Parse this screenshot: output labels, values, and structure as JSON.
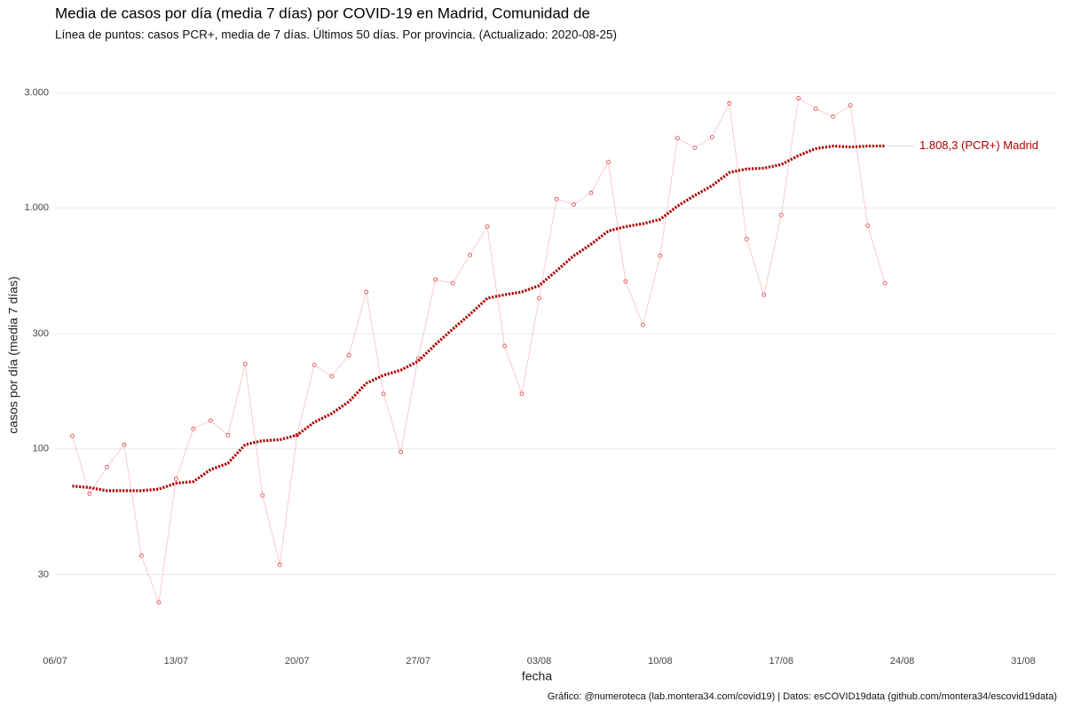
{
  "chart_data": {
    "type": "line",
    "title": "Media de casos por día (media 7 días) por COVID-19 en Madrid, Comunidad de",
    "subtitle": "Línea de puntos: casos PCR+, media de 7 días. Últimos 50 días. Por provincia. (Actualizado: 2020-08-25)",
    "x_label": "fecha",
    "y_label": "casos por día (media 7 días)",
    "caption": "Gráfico: @numeroteca (lab.montera34.com/covid19) | Datos: esCOVID19data (github.com/montera34/escovid19data)",
    "annotation": "1.808,3 (PCR+) Madrid",
    "log_y": true,
    "grid": true,
    "x": [
      "07/07",
      "08/07",
      "09/07",
      "10/07",
      "11/07",
      "12/07",
      "13/07",
      "14/07",
      "15/07",
      "16/07",
      "17/07",
      "18/07",
      "19/07",
      "20/07",
      "21/07",
      "22/07",
      "23/07",
      "24/07",
      "25/07",
      "26/07",
      "27/07",
      "28/07",
      "29/07",
      "30/07",
      "31/07",
      "01/08",
      "02/08",
      "03/08",
      "04/08",
      "05/08",
      "06/08",
      "07/08",
      "08/08",
      "09/08",
      "10/08",
      "11/08",
      "12/08",
      "13/08",
      "14/08",
      "15/08",
      "16/08",
      "17/08",
      "18/08",
      "19/08",
      "20/08",
      "21/08",
      "22/08",
      "23/08"
    ],
    "series": [
      {
        "color": "#e0393e",
        "style": "points",
        "values": [
          113,
          65,
          84,
          104,
          36,
          23,
          75,
          121,
          131,
          114,
          225,
          64,
          33,
          114,
          223,
          200,
          245,
          448,
          169,
          97,
          237,
          504,
          487,
          638,
          837,
          267,
          169,
          422,
          1089,
          1034,
          1155,
          1552,
          495,
          327,
          633,
          1950,
          1778,
          1968,
          2716,
          743,
          436,
          935,
          2858,
          2582,
          2393,
          2668,
          845,
          487
        ]
      },
      {
        "color": "#b00000",
        "style": "dotted",
        "values": [
          70,
          69,
          67,
          67,
          67,
          68,
          72,
          73,
          82,
          87,
          104,
          108,
          109,
          114,
          129,
          140,
          157,
          187,
          202,
          212,
          231,
          271,
          314,
          362,
          422,
          436,
          448,
          476,
          548,
          633,
          706,
          802,
          837,
          860,
          897,
          1018,
          1127,
          1236,
          1403,
          1451,
          1463,
          1515,
          1650,
          1765,
          1807,
          1792,
          1807,
          1808.3
        ]
      }
    ],
    "xlim": [
      "06/07",
      "31/08"
    ],
    "xticks": [
      "06/07",
      "13/07",
      "20/07",
      "27/07",
      "03/08",
      "10/08",
      "17/08",
      "24/08",
      "31/08"
    ],
    "ylim": [
      16.5,
      3550
    ],
    "yticks": [
      30,
      100,
      300,
      {
        "value": 1000,
        "label": "1.000"
      },
      {
        "value": 3000,
        "label": "3.000"
      }
    ]
  }
}
